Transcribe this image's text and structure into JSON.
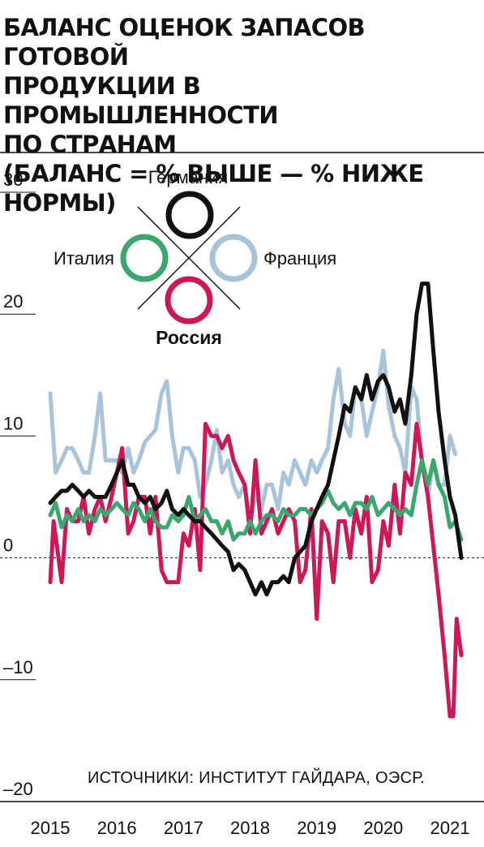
{
  "title_lines": [
    "БАЛАНС ОЦЕНОК ЗАПАСОВ ГОТОВОЙ",
    "ПРОДУКЦИИ В ПРОМЫШЛЕННОСТИ",
    "ПО СТРАНАМ",
    "(БАЛАНС = % ВЫШЕ — % НИЖЕ НОРМЫ)"
  ],
  "source": "ИСТОЧНИКИ: ИНСТИТУТ ГАЙДАРА, ОЭСР.",
  "legend": {
    "top": "Германия",
    "left": "Италия",
    "right": "Франция",
    "bottom": "Россия"
  },
  "chart_data": {
    "type": "line",
    "title": "БАЛАНС ОЦЕНОК ЗАПАСОВ ГОТОВОЙ ПРОДУКЦИИ В ПРОМЫШЛЕННОСТИ ПО СТРАНАМ (БАЛАНС = % ВЫШЕ — % НИЖЕ НОРМЫ)",
    "xlabel": "",
    "ylabel": "",
    "ylim": [
      -20,
      30
    ],
    "xlim": [
      2014.8,
      2021.3
    ],
    "y_ticks": [
      30,
      20,
      10,
      0,
      -10,
      -20
    ],
    "y_tick_labels": [
      "30",
      "20",
      "10",
      "0",
      "–10",
      "–20"
    ],
    "x_ticks": [
      2015,
      2016,
      2017,
      2018,
      2019,
      2020,
      2021
    ],
    "x_tick_labels": [
      "2015",
      "2016",
      "2017",
      "2018",
      "2019",
      "2020",
      "2021"
    ],
    "zero_line": "dashed",
    "series": [
      {
        "name": "Франция",
        "color": "#a8c4db",
        "points": [
          [
            2015.0,
            13.5
          ],
          [
            2015.08,
            7
          ],
          [
            2015.17,
            8
          ],
          [
            2015.25,
            9
          ],
          [
            2015.33,
            9
          ],
          [
            2015.42,
            8
          ],
          [
            2015.5,
            7
          ],
          [
            2015.58,
            7
          ],
          [
            2015.67,
            10
          ],
          [
            2015.75,
            13.5
          ],
          [
            2015.83,
            8
          ],
          [
            2015.92,
            8
          ],
          [
            2016.0,
            8
          ],
          [
            2016.08,
            7
          ],
          [
            2016.17,
            9
          ],
          [
            2016.25,
            7
          ],
          [
            2016.33,
            8
          ],
          [
            2016.42,
            9.5
          ],
          [
            2016.5,
            10
          ],
          [
            2016.58,
            10.5
          ],
          [
            2016.67,
            13.5
          ],
          [
            2016.75,
            14.5
          ],
          [
            2016.83,
            10
          ],
          [
            2016.92,
            7
          ],
          [
            2017.0,
            9
          ],
          [
            2017.08,
            9
          ],
          [
            2017.17,
            8
          ],
          [
            2017.25,
            5
          ],
          [
            2017.33,
            6
          ],
          [
            2017.42,
            8
          ],
          [
            2017.5,
            10.5
          ],
          [
            2017.58,
            7
          ],
          [
            2017.67,
            8
          ],
          [
            2017.75,
            6
          ],
          [
            2017.83,
            5
          ],
          [
            2017.92,
            6
          ],
          [
            2018.0,
            3
          ],
          [
            2018.08,
            5
          ],
          [
            2018.17,
            4
          ],
          [
            2018.25,
            6
          ],
          [
            2018.33,
            6
          ],
          [
            2018.42,
            4
          ],
          [
            2018.5,
            7
          ],
          [
            2018.58,
            6
          ],
          [
            2018.67,
            8
          ],
          [
            2018.75,
            7
          ],
          [
            2018.83,
            6
          ],
          [
            2018.92,
            8
          ],
          [
            2019.0,
            7
          ],
          [
            2019.08,
            8
          ],
          [
            2019.17,
            9
          ],
          [
            2019.25,
            13
          ],
          [
            2019.33,
            15.5
          ],
          [
            2019.42,
            11
          ],
          [
            2019.5,
            10
          ],
          [
            2019.58,
            14
          ],
          [
            2019.67,
            13
          ],
          [
            2019.75,
            10
          ],
          [
            2019.83,
            12
          ],
          [
            2019.92,
            14
          ],
          [
            2020.0,
            17
          ],
          [
            2020.08,
            12.5
          ],
          [
            2020.17,
            10
          ],
          [
            2020.25,
            9
          ],
          [
            2020.33,
            7
          ],
          [
            2020.42,
            14
          ],
          [
            2020.5,
            13
          ],
          [
            2020.58,
            8
          ],
          [
            2020.67,
            5
          ],
          [
            2020.75,
            8
          ],
          [
            2020.83,
            6
          ],
          [
            2020.92,
            6
          ],
          [
            2021.0,
            10
          ],
          [
            2021.08,
            8.5
          ]
        ]
      },
      {
        "name": "Россия",
        "color": "#cc1858",
        "points": [
          [
            2015.0,
            -2
          ],
          [
            2015.05,
            3
          ],
          [
            2015.1,
            1
          ],
          [
            2015.17,
            -2
          ],
          [
            2015.25,
            4
          ],
          [
            2015.33,
            3
          ],
          [
            2015.42,
            3
          ],
          [
            2015.5,
            5
          ],
          [
            2015.58,
            2
          ],
          [
            2015.67,
            4
          ],
          [
            2015.75,
            5
          ],
          [
            2015.83,
            3
          ],
          [
            2015.92,
            5
          ],
          [
            2016.0,
            7
          ],
          [
            2016.08,
            9
          ],
          [
            2016.17,
            2
          ],
          [
            2016.25,
            3
          ],
          [
            2016.33,
            5
          ],
          [
            2016.42,
            5
          ],
          [
            2016.5,
            2
          ],
          [
            2016.58,
            5
          ],
          [
            2016.67,
            -1
          ],
          [
            2016.75,
            -2
          ],
          [
            2016.83,
            -2
          ],
          [
            2016.92,
            -2
          ],
          [
            2017.0,
            2
          ],
          [
            2017.08,
            1
          ],
          [
            2017.17,
            4
          ],
          [
            2017.25,
            -1
          ],
          [
            2017.33,
            11
          ],
          [
            2017.42,
            10
          ],
          [
            2017.5,
            10
          ],
          [
            2017.58,
            9
          ],
          [
            2017.67,
            10
          ],
          [
            2017.75,
            8
          ],
          [
            2017.83,
            7
          ],
          [
            2017.92,
            6
          ],
          [
            2018.0,
            2
          ],
          [
            2018.08,
            8
          ],
          [
            2018.17,
            2
          ],
          [
            2018.25,
            3
          ],
          [
            2018.33,
            4
          ],
          [
            2018.42,
            2
          ],
          [
            2018.5,
            3
          ],
          [
            2018.58,
            4
          ],
          [
            2018.67,
            3
          ],
          [
            2018.75,
            -2
          ],
          [
            2018.83,
            -1
          ],
          [
            2018.92,
            4
          ],
          [
            2019.0,
            -5
          ],
          [
            2019.08,
            3
          ],
          [
            2019.17,
            2
          ],
          [
            2019.25,
            -2
          ],
          [
            2019.33,
            3
          ],
          [
            2019.42,
            3
          ],
          [
            2019.5,
            0
          ],
          [
            2019.58,
            4
          ],
          [
            2019.67,
            2
          ],
          [
            2019.75,
            5
          ],
          [
            2019.83,
            -2
          ],
          [
            2019.92,
            -1
          ],
          [
            2020.0,
            3
          ],
          [
            2020.08,
            1
          ],
          [
            2020.17,
            6
          ],
          [
            2020.25,
            2
          ],
          [
            2020.33,
            7
          ],
          [
            2020.42,
            6
          ],
          [
            2020.5,
            11
          ],
          [
            2020.58,
            8
          ],
          [
            2020.67,
            5
          ],
          [
            2020.75,
            1
          ],
          [
            2020.83,
            -3
          ],
          [
            2020.92,
            -8
          ],
          [
            2021.0,
            -13
          ],
          [
            2021.05,
            -13
          ],
          [
            2021.1,
            -5
          ],
          [
            2021.17,
            -8
          ]
        ]
      },
      {
        "name": "Италия",
        "color": "#3ba66d",
        "points": [
          [
            2015.0,
            3.5
          ],
          [
            2015.08,
            4.5
          ],
          [
            2015.17,
            2.5
          ],
          [
            2015.25,
            3.5
          ],
          [
            2015.33,
            3
          ],
          [
            2015.42,
            4
          ],
          [
            2015.5,
            3
          ],
          [
            2015.58,
            3.5
          ],
          [
            2015.67,
            3
          ],
          [
            2015.75,
            4
          ],
          [
            2015.83,
            3.5
          ],
          [
            2015.92,
            4
          ],
          [
            2016.0,
            4.5
          ],
          [
            2016.08,
            4
          ],
          [
            2016.17,
            3.5
          ],
          [
            2016.25,
            4.5
          ],
          [
            2016.33,
            4
          ],
          [
            2016.42,
            3
          ],
          [
            2016.5,
            4
          ],
          [
            2016.58,
            3
          ],
          [
            2016.67,
            2.5
          ],
          [
            2016.75,
            2.5
          ],
          [
            2016.83,
            3.5
          ],
          [
            2016.92,
            3
          ],
          [
            2017.0,
            3.5
          ],
          [
            2017.08,
            5
          ],
          [
            2017.17,
            3
          ],
          [
            2017.25,
            3.5
          ],
          [
            2017.33,
            4
          ],
          [
            2017.42,
            3
          ],
          [
            2017.5,
            3
          ],
          [
            2017.58,
            2
          ],
          [
            2017.67,
            3
          ],
          [
            2017.75,
            1.5
          ],
          [
            2017.83,
            2
          ],
          [
            2017.92,
            2
          ],
          [
            2018.0,
            3
          ],
          [
            2018.08,
            2
          ],
          [
            2018.17,
            3
          ],
          [
            2018.25,
            3.5
          ],
          [
            2018.33,
            3.5
          ],
          [
            2018.42,
            3
          ],
          [
            2018.5,
            4
          ],
          [
            2018.58,
            3.5
          ],
          [
            2018.67,
            3.5
          ],
          [
            2018.75,
            4
          ],
          [
            2018.83,
            4
          ],
          [
            2018.92,
            3.5
          ],
          [
            2019.0,
            4
          ],
          [
            2019.08,
            4.5
          ],
          [
            2019.17,
            5.5
          ],
          [
            2019.25,
            4.5
          ],
          [
            2019.33,
            4
          ],
          [
            2019.42,
            4.5
          ],
          [
            2019.5,
            3.5
          ],
          [
            2019.58,
            4.5
          ],
          [
            2019.67,
            4.5
          ],
          [
            2019.75,
            4
          ],
          [
            2019.83,
            5
          ],
          [
            2019.92,
            3.5
          ],
          [
            2020.0,
            4
          ],
          [
            2020.08,
            4.5
          ],
          [
            2020.17,
            4
          ],
          [
            2020.25,
            3.5
          ],
          [
            2020.33,
            4
          ],
          [
            2020.42,
            3.5
          ],
          [
            2020.5,
            6
          ],
          [
            2020.58,
            8
          ],
          [
            2020.67,
            6
          ],
          [
            2020.75,
            8
          ],
          [
            2020.83,
            6
          ],
          [
            2020.92,
            5
          ],
          [
            2021.0,
            2.5
          ],
          [
            2021.08,
            3
          ],
          [
            2021.17,
            1.5
          ]
        ]
      },
      {
        "name": "Германия",
        "color": "#111111",
        "points": [
          [
            2015.0,
            4.5
          ],
          [
            2015.08,
            5
          ],
          [
            2015.17,
            5.5
          ],
          [
            2015.25,
            5.5
          ],
          [
            2015.33,
            6
          ],
          [
            2015.42,
            5.5
          ],
          [
            2015.5,
            5
          ],
          [
            2015.58,
            5.5
          ],
          [
            2015.67,
            5
          ],
          [
            2015.75,
            5
          ],
          [
            2015.83,
            5
          ],
          [
            2015.92,
            6
          ],
          [
            2016.0,
            7
          ],
          [
            2016.08,
            8
          ],
          [
            2016.17,
            6
          ],
          [
            2016.25,
            6
          ],
          [
            2016.33,
            5
          ],
          [
            2016.42,
            4.5
          ],
          [
            2016.5,
            5
          ],
          [
            2016.58,
            4
          ],
          [
            2016.67,
            4.5
          ],
          [
            2016.75,
            5.5
          ],
          [
            2016.83,
            4
          ],
          [
            2016.92,
            3.5
          ],
          [
            2017.0,
            4
          ],
          [
            2017.08,
            3.5
          ],
          [
            2017.17,
            3
          ],
          [
            2017.25,
            3
          ],
          [
            2017.33,
            2.5
          ],
          [
            2017.42,
            2
          ],
          [
            2017.5,
            1.5
          ],
          [
            2017.58,
            1
          ],
          [
            2017.67,
            0.5
          ],
          [
            2017.75,
            -1
          ],
          [
            2017.83,
            -0.5
          ],
          [
            2017.92,
            -1
          ],
          [
            2018.0,
            -2
          ],
          [
            2018.08,
            -3
          ],
          [
            2018.17,
            -2
          ],
          [
            2018.25,
            -3
          ],
          [
            2018.33,
            -2
          ],
          [
            2018.42,
            -2
          ],
          [
            2018.5,
            -1.5
          ],
          [
            2018.58,
            -2
          ],
          [
            2018.67,
            0
          ],
          [
            2018.75,
            0.5
          ],
          [
            2018.83,
            1
          ],
          [
            2018.92,
            3
          ],
          [
            2019.0,
            4
          ],
          [
            2019.08,
            5
          ],
          [
            2019.17,
            6
          ],
          [
            2019.25,
            8
          ],
          [
            2019.33,
            10
          ],
          [
            2019.42,
            12.5
          ],
          [
            2019.5,
            12
          ],
          [
            2019.58,
            14
          ],
          [
            2019.67,
            13
          ],
          [
            2019.75,
            15
          ],
          [
            2019.83,
            13
          ],
          [
            2019.92,
            14.5
          ],
          [
            2020.0,
            15
          ],
          [
            2020.08,
            14
          ],
          [
            2020.17,
            12
          ],
          [
            2020.25,
            13
          ],
          [
            2020.33,
            11
          ],
          [
            2020.42,
            15
          ],
          [
            2020.5,
            20
          ],
          [
            2020.58,
            22.5
          ],
          [
            2020.67,
            22.5
          ],
          [
            2020.75,
            17
          ],
          [
            2020.83,
            12
          ],
          [
            2020.92,
            8
          ],
          [
            2021.0,
            5
          ],
          [
            2021.08,
            3.5
          ],
          [
            2021.17,
            0
          ]
        ]
      }
    ]
  }
}
